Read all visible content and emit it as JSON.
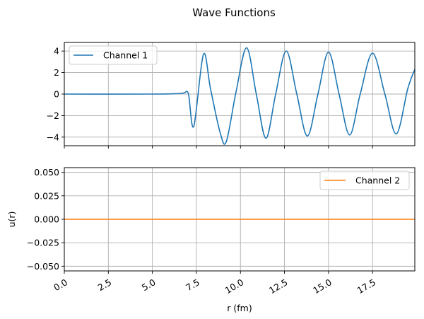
{
  "chart_data": {
    "type": "line",
    "title": "Wave Functions",
    "xlabel": "r (fm)",
    "ylabel": "u(r)",
    "xlim": [
      0,
      19.9
    ],
    "x_ticks": [
      "0.0",
      "2.5",
      "5.0",
      "7.5",
      "10.0",
      "12.5",
      "15.0",
      "17.5"
    ],
    "x_tick_values": [
      0,
      2.5,
      5,
      7.5,
      10,
      12.5,
      15,
      17.5
    ],
    "grid": true,
    "subplots": [
      {
        "series": [
          {
            "name": "Channel 1",
            "color": "#1f77b4",
            "x": [
              0.0,
              5.0,
              6.5,
              6.8,
              7.05,
              7.35,
              7.9,
              8.3,
              8.85,
              9.2,
              9.75,
              10.35,
              10.9,
              11.45,
              12.0,
              12.6,
              13.2,
              13.8,
              14.4,
              15.0,
              15.6,
              16.2,
              16.8,
              17.5,
              18.2,
              18.85,
              19.5,
              19.9
            ],
            "values": [
              0.0,
              0.0,
              0.05,
              0.1,
              0.0,
              -3.0,
              3.7,
              0.5,
              -3.6,
              -4.4,
              0.2,
              4.3,
              0.0,
              -4.1,
              0.0,
              4.0,
              0.0,
              -3.9,
              0.0,
              3.9,
              0.0,
              -3.8,
              0.0,
              3.8,
              0.0,
              -3.7,
              0.5,
              2.3
            ]
          }
        ],
        "ylim": [
          -4.8,
          4.8
        ],
        "y_ticks": [
          "4",
          "2",
          "0",
          "−2",
          "−4"
        ],
        "y_tick_values": [
          4,
          2,
          0,
          -2,
          -4
        ],
        "legend": "top-left"
      },
      {
        "series": [
          {
            "name": "Channel 2",
            "color": "#ff7f0e",
            "x": [
              0.0,
              19.9
            ],
            "values": [
              0.0,
              0.0
            ]
          }
        ],
        "ylim": [
          -0.055,
          0.055
        ],
        "y_ticks": [
          "0.050",
          "0.025",
          "0.000",
          "−0.025",
          "−0.050"
        ],
        "y_tick_values": [
          0.05,
          0.025,
          0.0,
          -0.025,
          -0.05
        ],
        "legend": "top-right"
      }
    ]
  }
}
